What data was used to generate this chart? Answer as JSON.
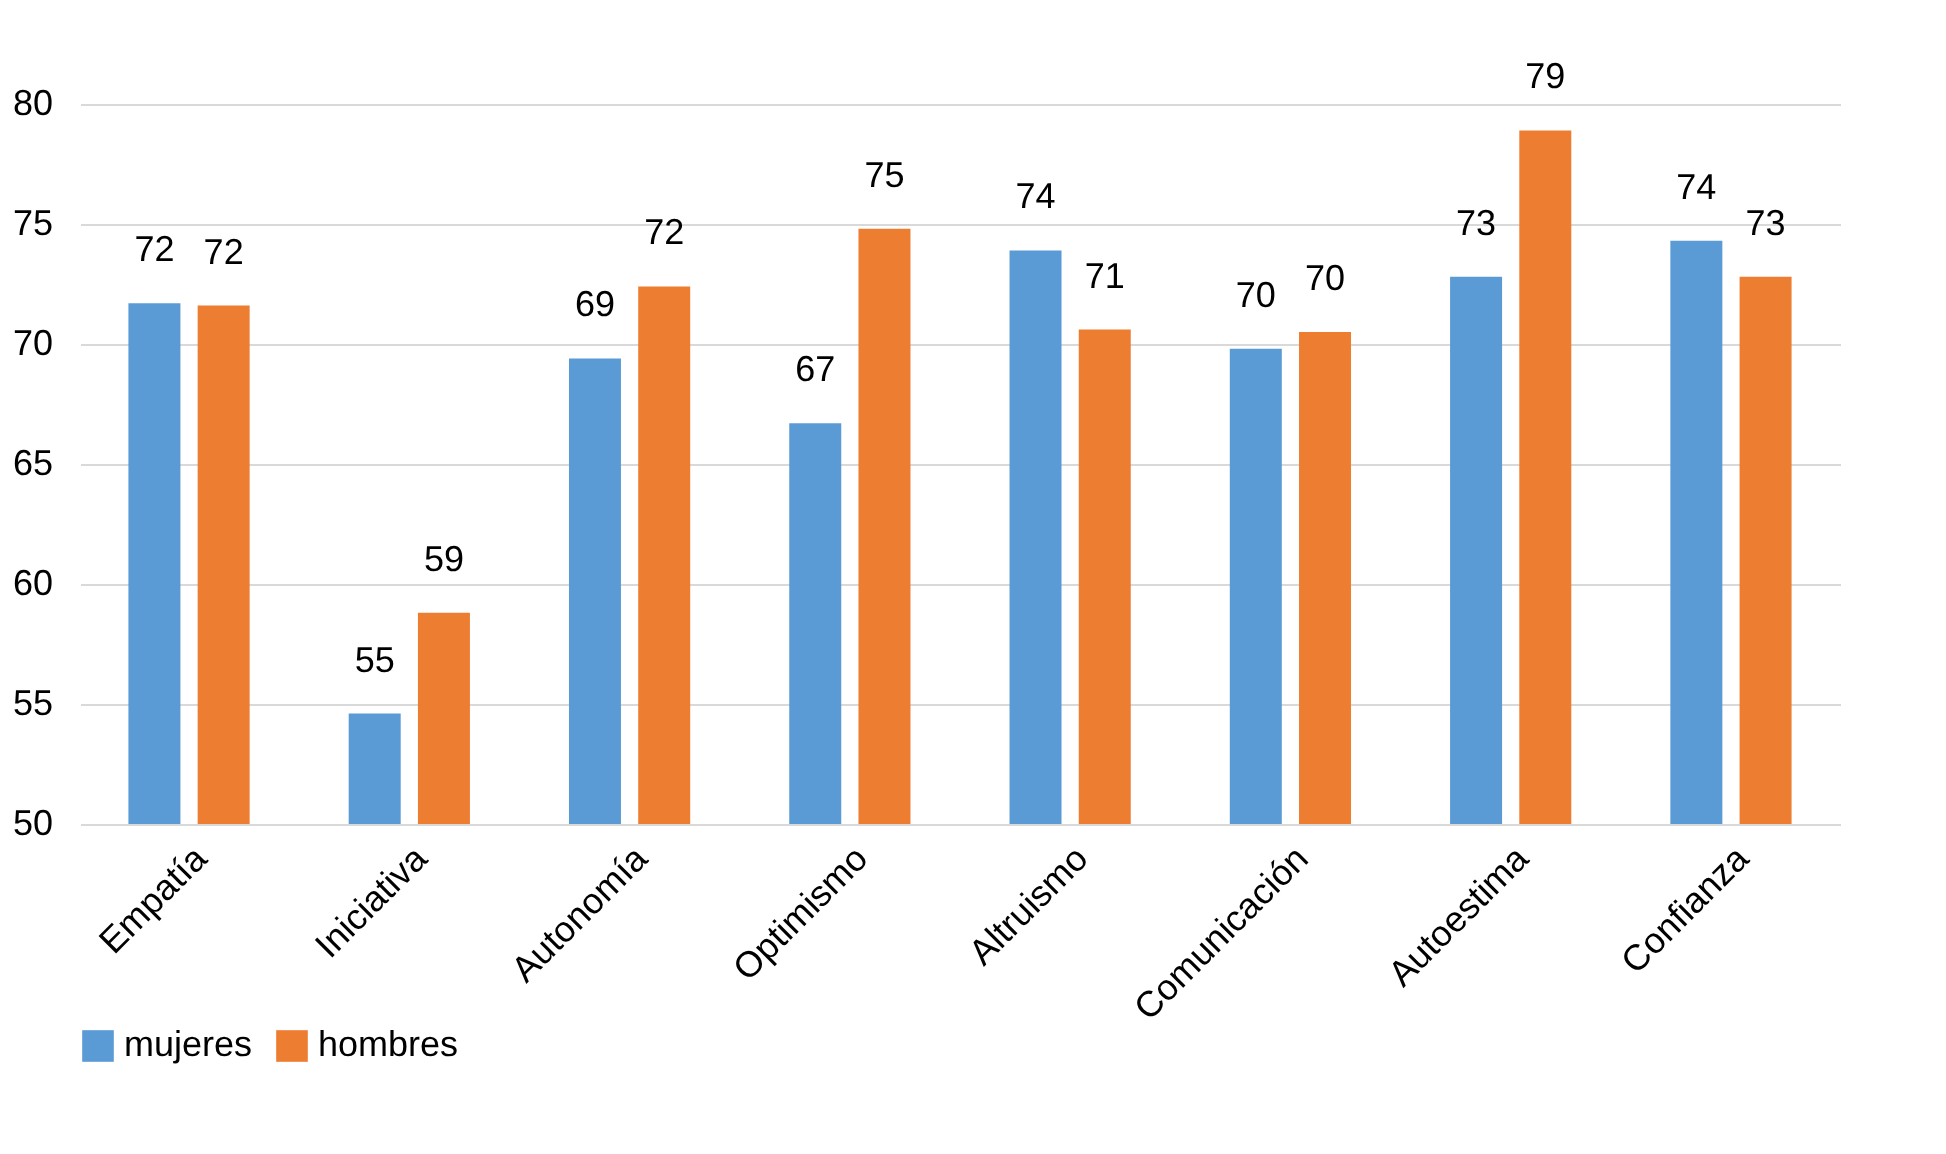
{
  "chart_data": {
    "type": "bar",
    "categories": [
      "Empatía",
      "Iniciativa",
      "Autonomía",
      "Optimismo",
      "Altruismo",
      "Comunicación",
      "Autoestima",
      "Confianza"
    ],
    "series": [
      {
        "name": "mujeres",
        "color": "#5b9bd5",
        "values": [
          71.7,
          54.6,
          69.4,
          66.7,
          73.9,
          69.8,
          72.8,
          74.3
        ],
        "value_labels": [
          "72",
          "55",
          "69",
          "67",
          "74",
          "70",
          "73",
          "74"
        ]
      },
      {
        "name": "hombres",
        "color": "#ed7d31",
        "values": [
          71.6,
          58.8,
          72.4,
          74.8,
          70.6,
          70.5,
          78.9,
          72.8
        ],
        "value_labels": [
          "72",
          "59",
          "72",
          "75",
          "71",
          "70",
          "79",
          "73"
        ]
      }
    ],
    "ylim": [
      50,
      80
    ],
    "yticks": [
      50,
      55,
      60,
      65,
      70,
      75,
      80
    ],
    "grid": "y",
    "legend": "bottom"
  }
}
